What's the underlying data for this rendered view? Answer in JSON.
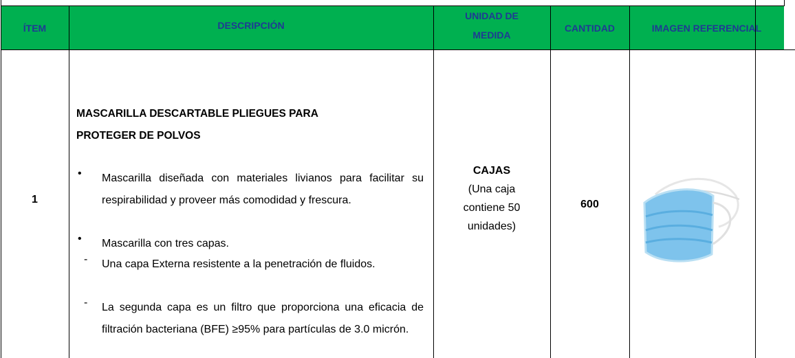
{
  "table": {
    "headers": [
      "ÍTEM",
      "DESCRIPCIÓN",
      "UNIDAD DE MEDIDA",
      "CANTIDAD",
      "IMAGEN REFERENCIAL"
    ],
    "rows": [
      {
        "item": "1",
        "title": "MASCARILLA DESCARTABLE PLIEGUES PARA PROTEGER DE POLVOS",
        "bullets": [
          "Mascarilla diseñada con materiales livianos para facilitar su respirabilidad y proveer más comodidad y frescura.",
          "Mascarilla con tres capas."
        ],
        "sub_bullets": [
          "Una capa Externa resistente a la penetración de fluidos.",
          "La segunda capa es un filtro que proporciona una eficacia de filtración bacteriana (BFE) ≥95% para partículas de 3.0 micrón."
        ],
        "unit": "CAJAS",
        "unit_note": "(Una caja contiene 50 unidades)",
        "quantity": "600"
      }
    ]
  }
}
